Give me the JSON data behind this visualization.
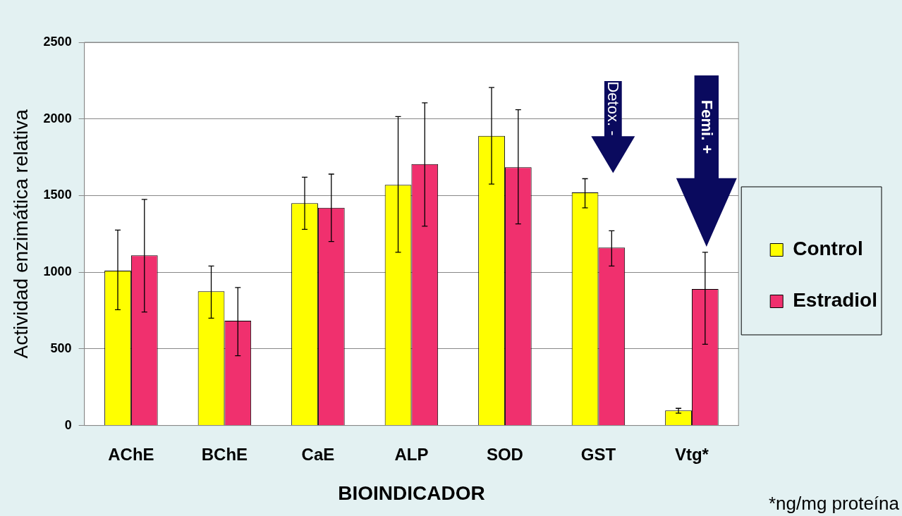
{
  "chart_data": {
    "type": "bar",
    "xlabel": "BIOINDICADOR",
    "ylabel": "Actividad enzimática relativa",
    "categories": [
      "AChE",
      "BChE",
      "CaE",
      "ALP",
      "SOD",
      "GST",
      "Vtg*"
    ],
    "series": [
      {
        "name": "Control",
        "color": "#ffff00",
        "values": [
          1010,
          875,
          1450,
          1570,
          1890,
          1520,
          98
        ],
        "errors": [
          [
            755,
            1275
          ],
          [
            700,
            1040
          ],
          [
            1280,
            1620
          ],
          [
            1130,
            2015
          ],
          [
            1575,
            2205
          ],
          [
            1420,
            1610
          ],
          [
            80,
            112
          ]
        ]
      },
      {
        "name": "Estradiol",
        "color": "#f0306e",
        "values": [
          1110,
          683,
          1420,
          1705,
          1685,
          1160,
          890
        ],
        "errors": [
          [
            740,
            1475
          ],
          [
            455,
            900
          ],
          [
            1200,
            1640
          ],
          [
            1300,
            2105
          ],
          [
            1315,
            2060
          ],
          [
            1040,
            1270
          ],
          [
            530,
            1130
          ]
        ]
      }
    ],
    "ylim": [
      0,
      2500
    ],
    "yticks": [
      0,
      500,
      1000,
      1500,
      2000,
      2500
    ],
    "grid": "y",
    "legend": "right",
    "annotations": [
      "Detox. -",
      "Femi. +",
      "*ng/mg proteína"
    ]
  }
}
